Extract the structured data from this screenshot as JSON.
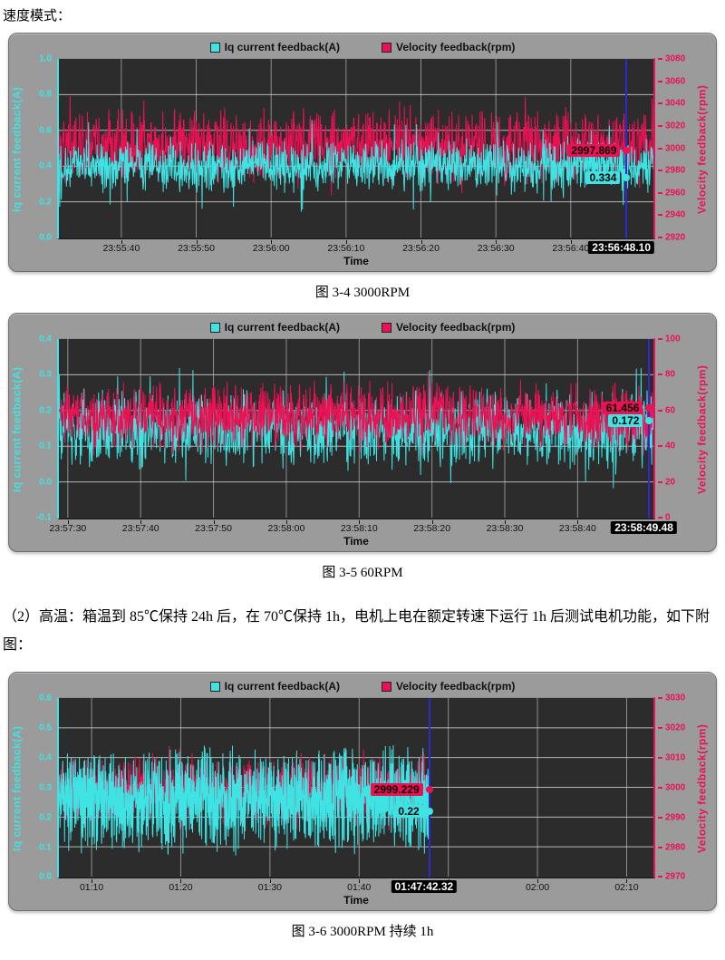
{
  "document": {
    "intro": "速度模式：",
    "paragraph": "（2）高温：箱温到 85℃保持 24h 后，在 70℃保持 1h，电机上电在额定转速下运行 1h 后测试电机功能，如下附图："
  },
  "colors": {
    "current_cyan": "#3fe3e3",
    "velocity_pink": "#ea1254",
    "cursor_blue": "#2a2ad0",
    "plot_bg": "#2c2c2c",
    "panel_bg": "#9b9b9b",
    "grid_h": "#cfcfcf",
    "grid_v": "#8f8f8f"
  },
  "chart_data": [
    {
      "type": "line",
      "caption": "图 3-4 3000RPM",
      "xlabel": "Time",
      "legend": [
        {
          "label": "Iq current feedback(A)",
          "color": "#3fe3e3"
        },
        {
          "label": "Velocity feedback(rpm)",
          "color": "#ea1254"
        }
      ],
      "left_axis": {
        "label": "Iq current feedback(A)",
        "color": "#3fe3e3",
        "min": 0.0,
        "max": 1.0,
        "ticks": [
          "1.0",
          "0.8",
          "0.6",
          "0.4",
          "0.2",
          "0.0"
        ]
      },
      "right_axis": {
        "label": "Velocity feedback(rpm)",
        "color": "#ea1254",
        "min": 2920,
        "max": 3080,
        "ticks": [
          "3080",
          "3060",
          "3040",
          "3020",
          "3000",
          "2980",
          "2960",
          "2940",
          "2920"
        ]
      },
      "x_ticks": [
        "23:55:40",
        "23:55:50",
        "23:56:00",
        "23:56:10",
        "23:56:20",
        "23:56:30",
        "23:56:40"
      ],
      "x_first_frac": 0.105,
      "x_step_frac": 0.126,
      "cursor": {
        "time": "23:56:48.10",
        "frac": 0.955,
        "velocity_value": "2997.869",
        "velocity_num": 2997.869,
        "current_value": "0.334",
        "current_num": 0.334
      },
      "series": [
        {
          "name": "Velocity feedback(rpm)",
          "axis": "right",
          "color": "#ea1254",
          "mean": 3002,
          "amp": 22,
          "spike": 45,
          "points": 1500,
          "end_frac": 1,
          "seed": 11
        },
        {
          "name": "Iq current feedback(A)",
          "axis": "left",
          "color": "#3fe3e3",
          "mean": 0.4,
          "amp": 0.1,
          "spike": 0.26,
          "points": 1500,
          "end_frac": 1,
          "seed": 12
        }
      ]
    },
    {
      "type": "line",
      "caption": "图 3-5 60RPM",
      "xlabel": "Time",
      "legend": [
        {
          "label": "Iq current feedback(A)",
          "color": "#3fe3e3"
        },
        {
          "label": "Velocity feedback(rpm)",
          "color": "#ea1254"
        }
      ],
      "left_axis": {
        "label": "Iq current feedback(A)",
        "color": "#3fe3e3",
        "min": -0.1,
        "max": 0.4,
        "ticks": [
          "0.4",
          "0.3",
          "0.2",
          "0.1",
          "0.0",
          "-0.1"
        ]
      },
      "right_axis": {
        "label": "Velocity feedback(rpm)",
        "color": "#ea1254",
        "min": 0,
        "max": 100,
        "ticks": [
          "100",
          "80",
          "60",
          "40",
          "20",
          "0"
        ]
      },
      "x_ticks": [
        "23:57:30",
        "23:57:40",
        "23:57:50",
        "23:58:00",
        "23:58:10",
        "23:58:20",
        "23:58:30",
        "23:58:40"
      ],
      "x_first_frac": 0.015,
      "x_step_frac": 0.1225,
      "cursor": {
        "time": "23:58:49.48",
        "frac": 0.993,
        "velocity_value": "61.456",
        "velocity_num": 61.456,
        "current_value": "0.172",
        "current_num": 0.172
      },
      "series": [
        {
          "name": "Iq current feedback(A)",
          "axis": "left",
          "color": "#3fe3e3",
          "mean": 0.15,
          "amp": 0.075,
          "spike": 0.17,
          "points": 1500,
          "end_frac": 1,
          "seed": 21
        },
        {
          "name": "Velocity feedback(rpm)",
          "axis": "right",
          "color": "#ea1254",
          "mean": 57,
          "amp": 13,
          "spike": 26,
          "points": 1500,
          "end_frac": 1,
          "seed": 22
        }
      ]
    },
    {
      "type": "line",
      "caption": "图 3-6 3000RPM 持续 1h",
      "xlabel": "Time",
      "legend": [
        {
          "label": "Iq current feedback(A)",
          "color": "#3fe3e3"
        },
        {
          "label": "Velocity feedback(rpm)",
          "color": "#ea1254"
        }
      ],
      "left_axis": {
        "label": "Iq current feedback(A)",
        "color": "#3fe3e3",
        "min": 0.0,
        "max": 0.6,
        "ticks": [
          "0.6",
          "0.5",
          "0.4",
          "0.3",
          "0.2",
          "0.1",
          "0.0"
        ]
      },
      "right_axis": {
        "label": "Velocity feedback(rpm)",
        "color": "#ea1254",
        "min": 2970,
        "max": 3030,
        "ticks": [
          "3030",
          "3020",
          "3010",
          "3000",
          "2990",
          "2980",
          "2970"
        ]
      },
      "x_ticks": [
        "01:10",
        "01:20",
        "01:30",
        "01:40",
        "",
        "02:00",
        "02:10"
      ],
      "x_first_frac": 0.055,
      "x_step_frac": 0.15,
      "cursor": {
        "time": "01:47:42.32",
        "frac": 0.623,
        "velocity_value": "2999.229",
        "velocity_num": 2999.229,
        "current_value": "0.22",
        "current_num": 0.22
      },
      "series": [
        {
          "name": "Velocity feedback(rpm)",
          "axis": "right",
          "color": "#ea1254",
          "mean": 2999,
          "amp": 8,
          "spike": 15,
          "points": 1100,
          "end_frac": 0.623,
          "seed": 31
        },
        {
          "name": "Iq current feedback(A)",
          "axis": "left",
          "color": "#3fe3e3",
          "mean": 0.26,
          "amp": 0.12,
          "spike": 0.17,
          "points": 1700,
          "end_frac": 0.623,
          "seed": 32
        }
      ]
    }
  ]
}
